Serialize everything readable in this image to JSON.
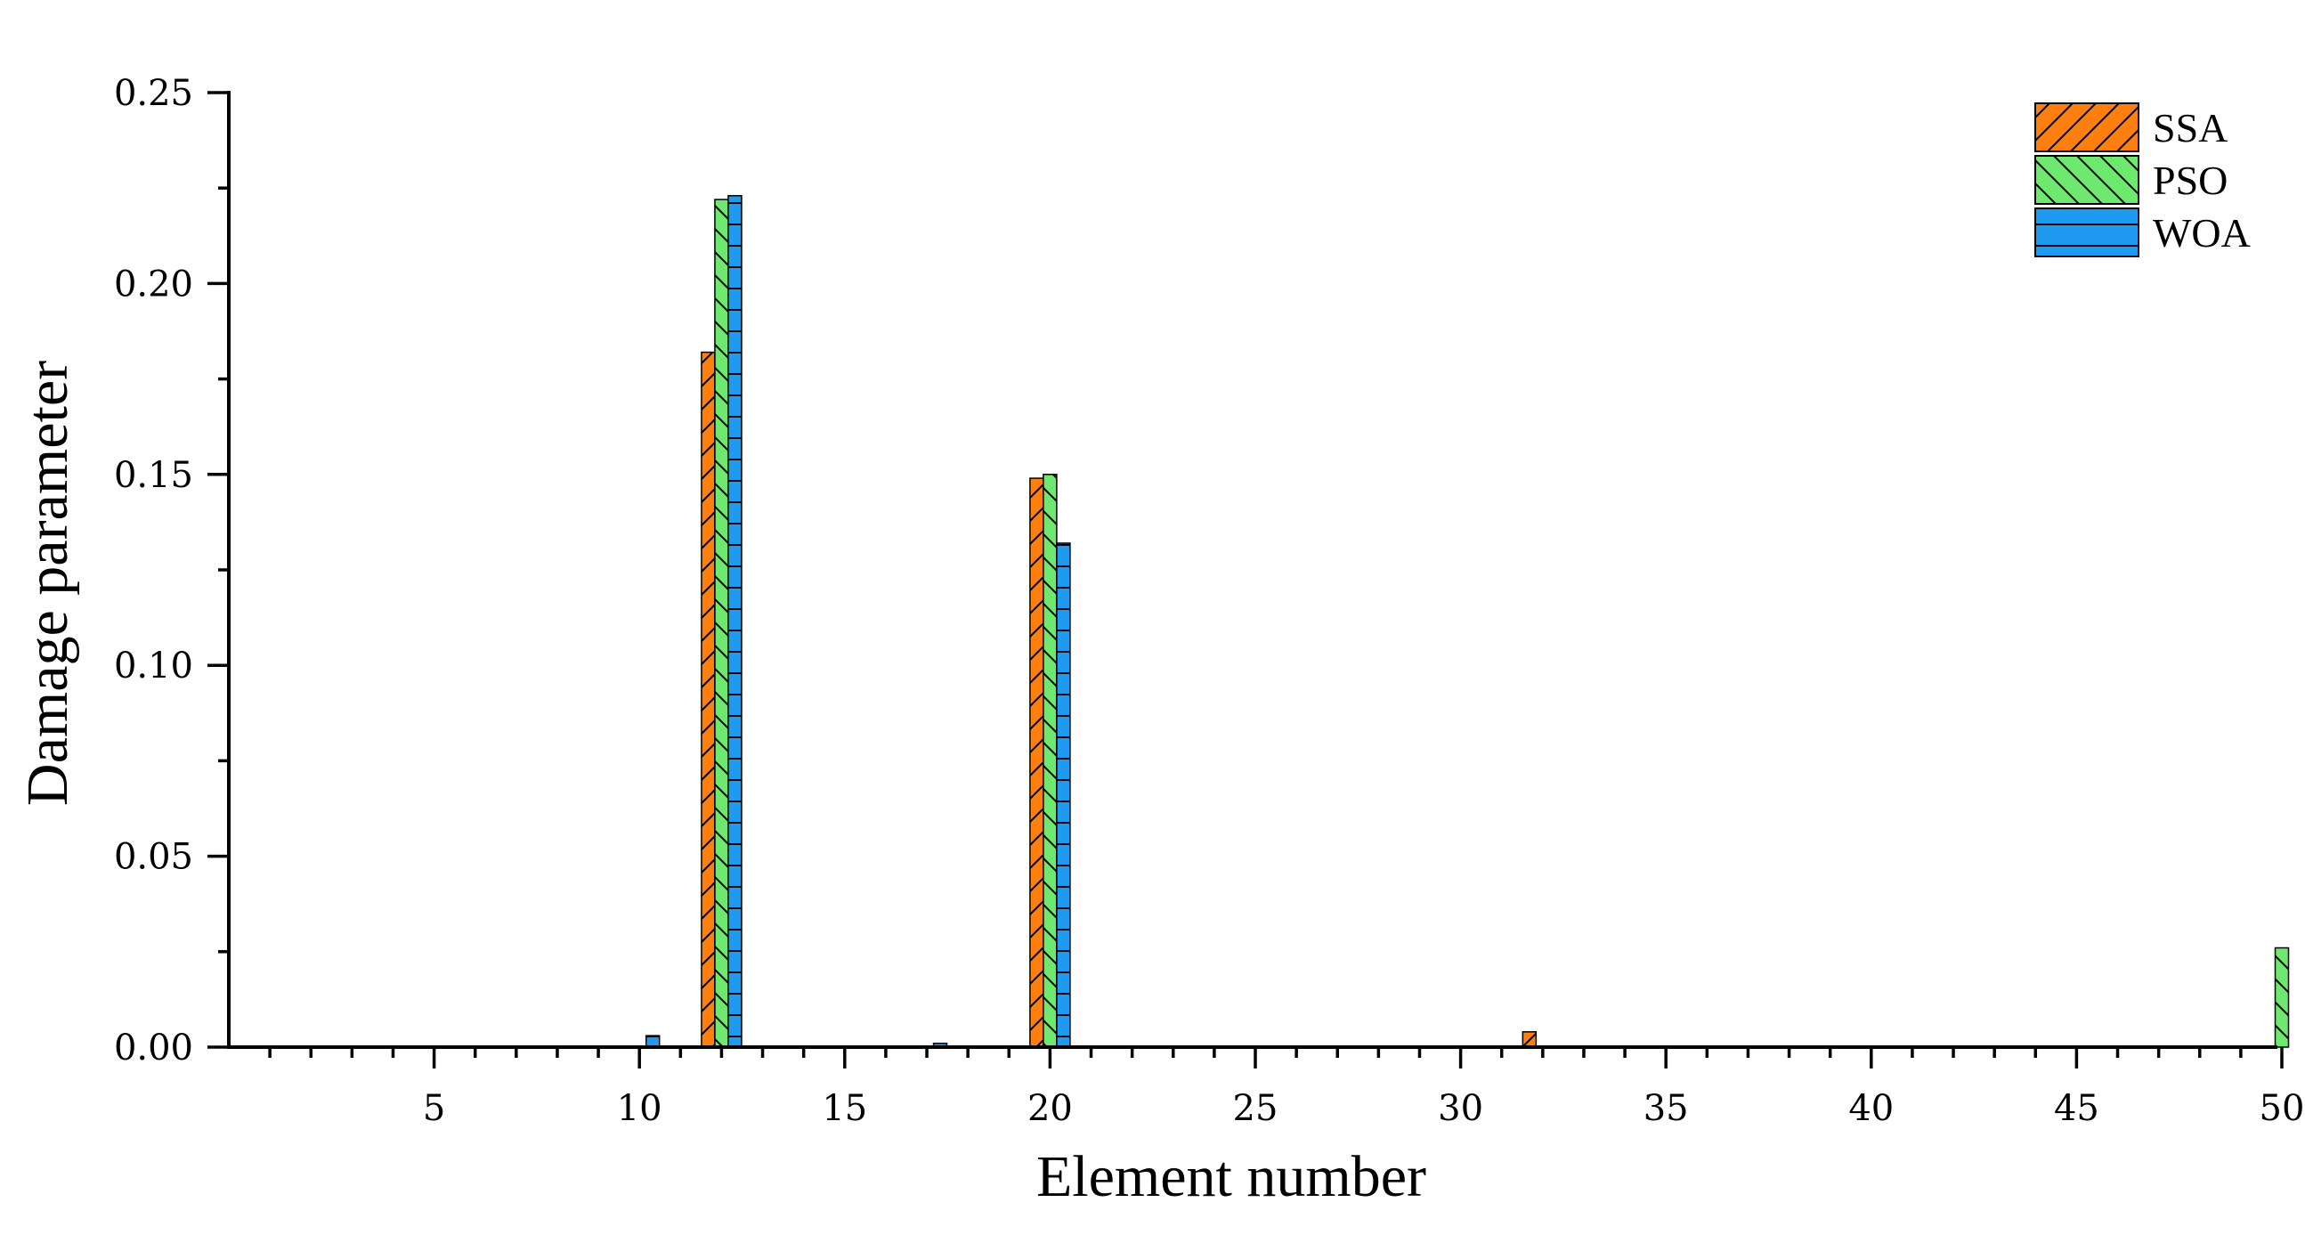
{
  "chart_data": {
    "type": "bar",
    "xlabel": "Element number",
    "ylabel": "Damage parameter",
    "x_range": [
      0,
      50.5
    ],
    "ylim": [
      0,
      0.25
    ],
    "x_ticks": [
      5,
      10,
      15,
      20,
      25,
      30,
      35,
      40,
      45,
      50
    ],
    "y_ticks": [
      "0.00",
      "0.05",
      "0.10",
      "0.15",
      "0.20",
      "0.25"
    ],
    "grid": false,
    "legend_position": "top-right",
    "series": [
      {
        "name": "SSA",
        "color": "#ff7f0e",
        "hatch": "diagonal-forward",
        "points": [
          {
            "element": 12,
            "value": 0.182
          },
          {
            "element": 20,
            "value": 0.149
          },
          {
            "element": 32,
            "value": 0.004
          }
        ]
      },
      {
        "name": "PSO",
        "color": "#6ee86e",
        "hatch": "diagonal-backward",
        "points": [
          {
            "element": 12,
            "value": 0.222
          },
          {
            "element": 20,
            "value": 0.15
          },
          {
            "element": 50,
            "value": 0.026
          }
        ]
      },
      {
        "name": "WOA",
        "color": "#1e9bf0",
        "hatch": "horizontal",
        "points": [
          {
            "element": 10,
            "value": 0.003
          },
          {
            "element": 12,
            "value": 0.223
          },
          {
            "element": 17,
            "value": 0.001
          },
          {
            "element": 20,
            "value": 0.132
          }
        ]
      }
    ]
  }
}
